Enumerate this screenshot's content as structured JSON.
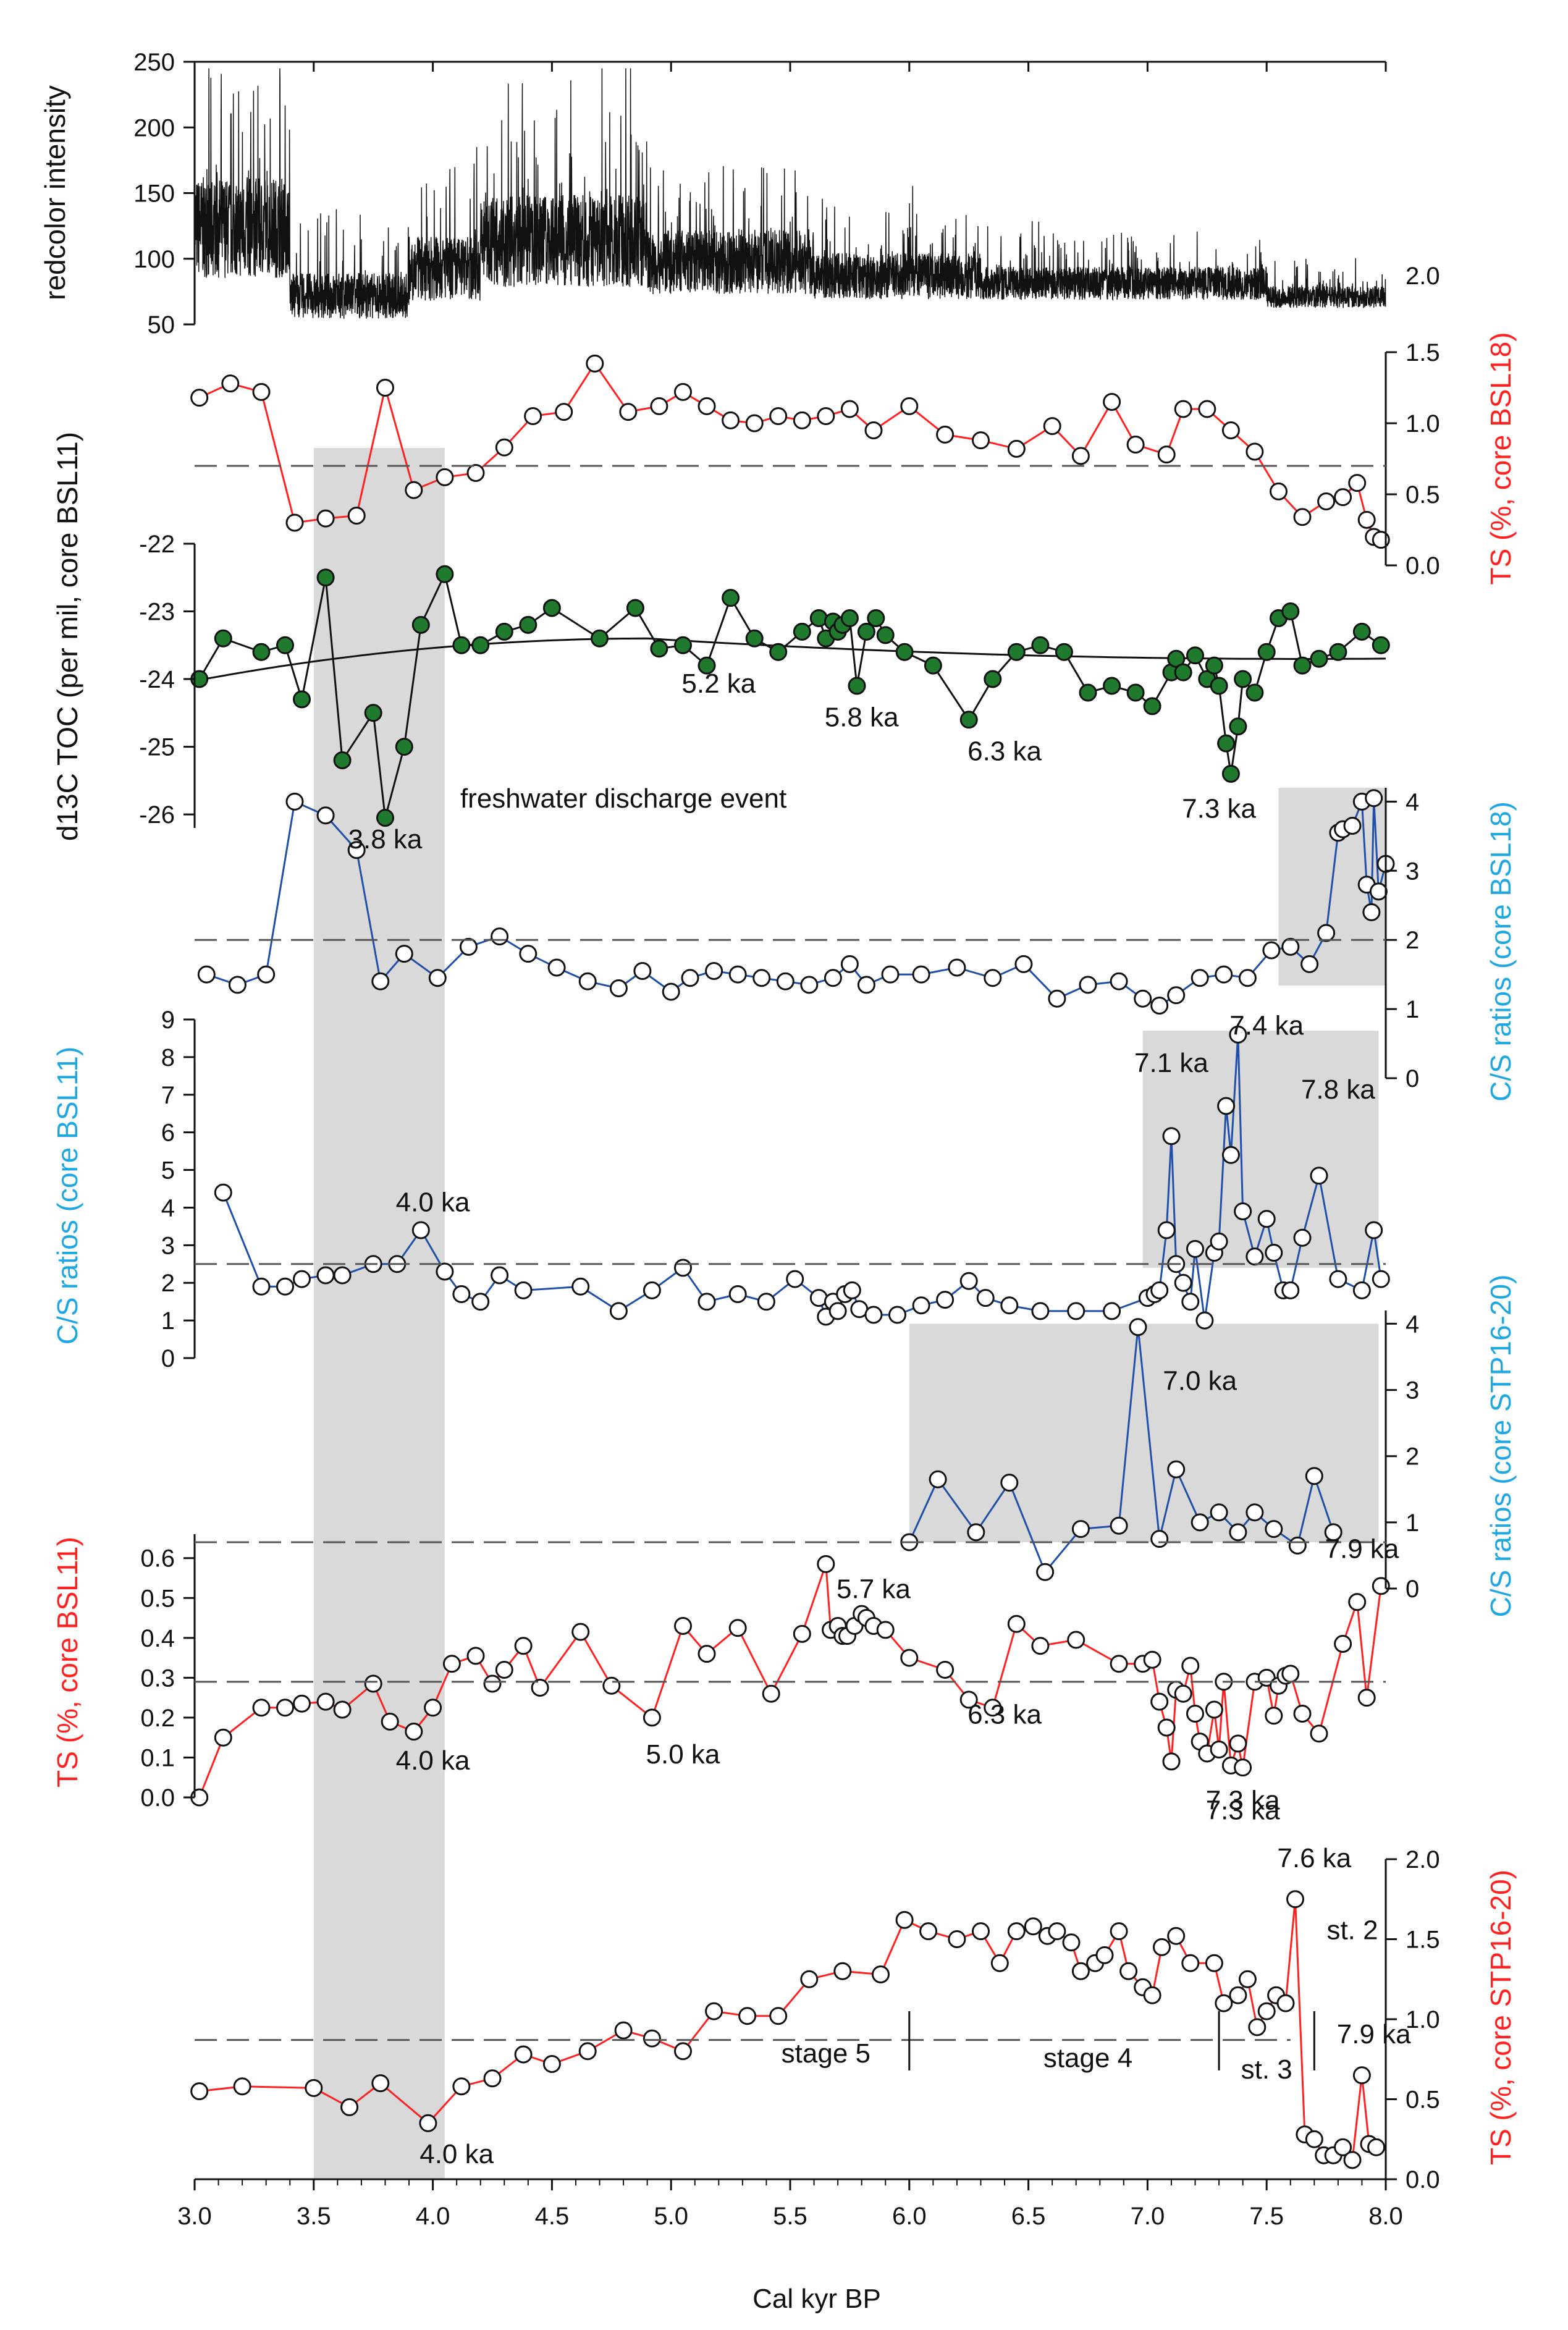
{
  "figure": {
    "x_axis_label": "Cal kyr BP",
    "x_ticks": [
      "3.0",
      "3.5",
      "4.0",
      "4.5",
      "5.0",
      "5.5",
      "6.0",
      "6.5",
      "7.0",
      "7.5",
      "8.0"
    ],
    "colors": {
      "red": "#ff2020",
      "blue": "#1f4fa8",
      "green": "#1f7a2e",
      "cyan": "#1ea7e1",
      "black": "#111111",
      "shade": "#d9d9d9",
      "dash": "#555555"
    }
  },
  "chart_data": [
    {
      "id": "redcolor",
      "type": "line",
      "ylabel": "redcolor intensity",
      "ylim": [
        50,
        250
      ],
      "yticks": [
        "50",
        "100",
        "150",
        "200",
        "250"
      ],
      "note": "high-resolution color scanning record; noisy series approximated",
      "segments": [
        {
          "x0": 3.0,
          "x1": 3.4,
          "base": 120,
          "amp": 55
        },
        {
          "x0": 3.4,
          "x1": 3.9,
          "base": 70,
          "amp": 25
        },
        {
          "x0": 3.9,
          "x1": 4.2,
          "base": 90,
          "amp": 35
        },
        {
          "x0": 4.2,
          "x1": 4.9,
          "base": 110,
          "amp": 50
        },
        {
          "x0": 4.9,
          "x1": 5.6,
          "base": 95,
          "amp": 35
        },
        {
          "x0": 5.6,
          "x1": 6.3,
          "base": 85,
          "amp": 25
        },
        {
          "x0": 6.3,
          "x1": 7.5,
          "base": 80,
          "amp": 18
        },
        {
          "x0": 7.5,
          "x1": 8.0,
          "base": 70,
          "amp": 12
        }
      ]
    },
    {
      "id": "ts_bsl18",
      "type": "line",
      "ylabel": "TS (%, core BSL18)",
      "ylim": [
        0,
        1.5
      ],
      "yticks": [
        "0.0",
        "0.5",
        "1.0",
        "1.5"
      ],
      "threshold": 0.7,
      "x": [
        3.02,
        3.15,
        3.28,
        3.42,
        3.55,
        3.68,
        3.8,
        3.92,
        4.05,
        4.18,
        4.3,
        4.42,
        4.55,
        4.68,
        4.82,
        4.95,
        5.05,
        5.15,
        5.25,
        5.35,
        5.45,
        5.55,
        5.65,
        5.75,
        5.85,
        6.0,
        6.15,
        6.3,
        6.45,
        6.6,
        6.72,
        6.85,
        6.95,
        7.08,
        7.15,
        7.25,
        7.35,
        7.45,
        7.55,
        7.65,
        7.75,
        7.82,
        7.88,
        7.92,
        7.95,
        7.98
      ],
      "values": [
        1.18,
        1.28,
        1.22,
        0.3,
        0.33,
        0.35,
        1.25,
        0.53,
        0.62,
        0.65,
        0.83,
        1.05,
        1.08,
        1.42,
        1.08,
        1.12,
        1.22,
        1.12,
        1.02,
        1.0,
        1.05,
        1.02,
        1.05,
        1.1,
        0.95,
        1.12,
        0.92,
        0.88,
        0.82,
        0.98,
        0.77,
        1.15,
        0.85,
        0.78,
        1.1,
        1.1,
        0.95,
        0.8,
        0.52,
        0.34,
        0.45,
        0.48,
        0.58,
        0.32,
        0.2,
        0.18
      ]
    },
    {
      "id": "d13c_bsl11",
      "type": "line",
      "ylabel": "d13C TOC (per mil, core BSL11)",
      "ylim": [
        -26.2,
        -22
      ],
      "yticks": [
        "-26",
        "-25",
        "-24",
        "-23",
        "-22"
      ],
      "trend": "polynomial",
      "x": [
        3.02,
        3.12,
        3.28,
        3.38,
        3.45,
        3.55,
        3.62,
        3.75,
        3.8,
        3.88,
        3.95,
        4.05,
        4.12,
        4.2,
        4.3,
        4.4,
        4.5,
        4.7,
        4.85,
        4.95,
        5.05,
        5.15,
        5.25,
        5.35,
        5.45,
        5.55,
        5.62,
        5.65,
        5.68,
        5.7,
        5.72,
        5.75,
        5.78,
        5.82,
        5.86,
        5.9,
        5.98,
        6.1,
        6.25,
        6.35,
        6.45,
        6.55,
        6.65,
        6.75,
        6.85,
        6.95,
        7.02,
        7.1,
        7.12,
        7.15,
        7.2,
        7.25,
        7.28,
        7.3,
        7.33,
        7.35,
        7.38,
        7.4,
        7.45,
        7.5,
        7.55,
        7.6,
        7.65,
        7.72,
        7.8,
        7.9,
        7.98
      ],
      "values": [
        -24.0,
        -23.4,
        -23.6,
        -23.5,
        -24.3,
        -22.5,
        -25.2,
        -24.5,
        -26.05,
        -25.0,
        -23.2,
        -22.45,
        -23.5,
        -23.5,
        -23.3,
        -23.2,
        -22.95,
        -23.4,
        -22.95,
        -23.55,
        -23.5,
        -23.8,
        -22.8,
        -23.4,
        -23.6,
        -23.3,
        -23.1,
        -23.4,
        -23.15,
        -23.3,
        -23.2,
        -23.1,
        -24.1,
        -23.3,
        -23.1,
        -23.35,
        -23.6,
        -23.8,
        -24.6,
        -24.0,
        -23.6,
        -23.5,
        -23.6,
        -24.2,
        -24.1,
        -24.2,
        -24.4,
        -23.9,
        -23.7,
        -23.9,
        -23.65,
        -24.0,
        -23.8,
        -24.1,
        -24.95,
        -25.4,
        -24.7,
        -24.0,
        -24.2,
        -23.6,
        -23.1,
        -23.0,
        -23.8,
        -23.7,
        -23.6,
        -23.3,
        -23.5
      ],
      "labels": [
        {
          "text": "3.8 ka",
          "x": 3.8,
          "y": -26.5
        },
        {
          "text": "5.2 ka",
          "x": 5.2,
          "y": -24.2
        },
        {
          "text": "5.8 ka",
          "x": 5.8,
          "y": -24.7
        },
        {
          "text": "6.3 ka",
          "x": 6.4,
          "y": -25.2
        },
        {
          "text": "7.3 ka",
          "x": 7.3,
          "y": -26.05
        },
        {
          "text": "freshwater discharge event",
          "x": 4.8,
          "y": -25.9
        }
      ]
    },
    {
      "id": "cs_bsl18",
      "type": "line",
      "ylabel": "C/S ratios (core BSL18)",
      "ylim": [
        0,
        4.2
      ],
      "yticks": [
        "0",
        "1",
        "2",
        "3",
        "4"
      ],
      "threshold": 2.0,
      "x": [
        3.05,
        3.18,
        3.3,
        3.42,
        3.55,
        3.68,
        3.78,
        3.88,
        4.02,
        4.15,
        4.28,
        4.4,
        4.52,
        4.65,
        4.78,
        4.88,
        5.0,
        5.08,
        5.18,
        5.28,
        5.38,
        5.48,
        5.58,
        5.68,
        5.75,
        5.82,
        5.92,
        6.05,
        6.2,
        6.35,
        6.48,
        6.62,
        6.75,
        6.88,
        6.98,
        7.05,
        7.12,
        7.22,
        7.32,
        7.42,
        7.52,
        7.6,
        7.68,
        7.75,
        7.8,
        7.82,
        7.86,
        7.9,
        7.92,
        7.94,
        7.95,
        7.97,
        8.0
      ],
      "values": [
        1.5,
        1.35,
        1.5,
        4.0,
        3.8,
        3.3,
        1.4,
        1.8,
        1.45,
        1.9,
        2.05,
        1.8,
        1.6,
        1.4,
        1.3,
        1.55,
        1.25,
        1.45,
        1.55,
        1.5,
        1.45,
        1.4,
        1.35,
        1.45,
        1.65,
        1.35,
        1.5,
        1.5,
        1.6,
        1.45,
        1.65,
        1.15,
        1.35,
        1.4,
        1.15,
        1.05,
        1.2,
        1.45,
        1.5,
        1.45,
        1.85,
        1.9,
        1.65,
        2.1,
        3.55,
        3.6,
        3.65,
        4.0,
        2.8,
        2.4,
        4.05,
        2.7,
        3.1
      ]
    },
    {
      "id": "cs_bsl11",
      "type": "line",
      "ylabel": "C/S ratios (core BSL11)",
      "ylim": [
        0,
        9
      ],
      "yticks": [
        "0",
        "1",
        "2",
        "3",
        "4",
        "5",
        "6",
        "7",
        "8",
        "9"
      ],
      "threshold": 2.5,
      "x": [
        3.12,
        3.28,
        3.38,
        3.45,
        3.55,
        3.62,
        3.75,
        3.85,
        3.95,
        4.05,
        4.12,
        4.2,
        4.28,
        4.38,
        4.62,
        4.78,
        4.92,
        5.05,
        5.15,
        5.28,
        5.4,
        5.52,
        5.62,
        5.65,
        5.68,
        5.7,
        5.73,
        5.76,
        5.79,
        5.85,
        5.95,
        6.05,
        6.15,
        6.25,
        6.32,
        6.42,
        6.55,
        6.7,
        6.85,
        7.0,
        7.03,
        7.05,
        7.08,
        7.1,
        7.12,
        7.15,
        7.18,
        7.2,
        7.24,
        7.28,
        7.3,
        7.33,
        7.35,
        7.38,
        7.4,
        7.45,
        7.5,
        7.53,
        7.57,
        7.6,
        7.65,
        7.72,
        7.8,
        7.9,
        7.95,
        7.98
      ],
      "values": [
        4.4,
        1.9,
        1.9,
        2.1,
        2.2,
        2.2,
        2.5,
        2.5,
        3.4,
        2.3,
        1.7,
        1.5,
        2.2,
        1.8,
        1.9,
        1.25,
        1.8,
        2.4,
        1.5,
        1.7,
        1.5,
        2.1,
        1.6,
        1.1,
        1.5,
        1.25,
        1.7,
        1.8,
        1.3,
        1.15,
        1.15,
        1.4,
        1.55,
        2.05,
        1.6,
        1.4,
        1.25,
        1.25,
        1.25,
        1.6,
        1.7,
        1.8,
        3.4,
        5.9,
        2.5,
        2.0,
        1.5,
        2.9,
        1.0,
        2.8,
        3.1,
        6.7,
        5.4,
        8.6,
        3.9,
        2.7,
        3.7,
        2.8,
        1.8,
        1.8,
        3.2,
        4.85,
        2.1,
        1.8,
        3.4,
        2.1
      ],
      "labels": [
        {
          "text": "4.0 ka",
          "x": 4.0,
          "y": 3.9
        },
        {
          "text": "7.1 ka",
          "x": 7.1,
          "y": 7.6
        },
        {
          "text": "7.4 ka",
          "x": 7.5,
          "y": 8.6
        },
        {
          "text": "7.8 ka",
          "x": 7.8,
          "y": 6.9
        }
      ]
    },
    {
      "id": "cs_stp",
      "type": "line",
      "ylabel": "C/S ratios (core STP16-20)",
      "ylim": [
        0,
        4.2
      ],
      "yticks": [
        "0",
        "1",
        "2",
        "3",
        "4"
      ],
      "threshold": 0.7,
      "x": [
        6.0,
        6.12,
        6.28,
        6.42,
        6.57,
        6.72,
        6.88,
        6.96,
        7.05,
        7.12,
        7.22,
        7.3,
        7.38,
        7.45,
        7.53,
        7.63,
        7.7,
        7.78
      ],
      "values": [
        0.7,
        1.65,
        0.85,
        1.6,
        0.25,
        0.9,
        0.95,
        3.95,
        0.75,
        1.8,
        1.0,
        1.15,
        0.85,
        1.15,
        0.9,
        0.65,
        1.7,
        0.85
      ],
      "labels": [
        {
          "text": "7.0 ka",
          "x": 7.22,
          "y": 3.0
        }
      ]
    },
    {
      "id": "ts_bsl11",
      "type": "line",
      "ylabel": "TS (%, core BSL11)",
      "ylim": [
        0,
        0.66
      ],
      "yticks": [
        "0.0",
        "0.1",
        "0.2",
        "0.3",
        "0.4",
        "0.5",
        "0.6"
      ],
      "threshold": 0.29,
      "x": [
        3.02,
        3.12,
        3.28,
        3.38,
        3.45,
        3.55,
        3.62,
        3.75,
        3.82,
        3.92,
        4.0,
        4.08,
        4.18,
        4.25,
        4.3,
        4.38,
        4.45,
        4.62,
        4.75,
        4.92,
        5.05,
        5.15,
        5.28,
        5.42,
        5.55,
        5.65,
        5.67,
        5.7,
        5.72,
        5.74,
        5.77,
        5.8,
        5.82,
        5.85,
        5.9,
        6.0,
        6.15,
        6.25,
        6.35,
        6.45,
        6.55,
        6.7,
        6.88,
        6.98,
        7.02,
        7.05,
        7.08,
        7.1,
        7.12,
        7.15,
        7.18,
        7.2,
        7.22,
        7.25,
        7.28,
        7.3,
        7.32,
        7.35,
        7.38,
        7.4,
        7.45,
        7.5,
        7.53,
        7.55,
        7.58,
        7.6,
        7.65,
        7.72,
        7.82,
        7.88,
        7.92,
        7.98
      ],
      "values": [
        0.0,
        0.15,
        0.225,
        0.225,
        0.235,
        0.24,
        0.22,
        0.285,
        0.19,
        0.165,
        0.225,
        0.335,
        0.355,
        0.285,
        0.32,
        0.38,
        0.275,
        0.415,
        0.28,
        0.2,
        0.43,
        0.36,
        0.425,
        0.26,
        0.41,
        0.585,
        0.42,
        0.43,
        0.405,
        0.405,
        0.43,
        0.46,
        0.45,
        0.43,
        0.42,
        0.35,
        0.32,
        0.245,
        0.225,
        0.435,
        0.38,
        0.395,
        0.335,
        0.335,
        0.345,
        0.24,
        0.175,
        0.09,
        0.27,
        0.26,
        0.33,
        0.21,
        0.14,
        0.11,
        0.22,
        0.12,
        0.29,
        0.08,
        0.135,
        0.075,
        0.29,
        0.3,
        0.205,
        0.28,
        0.305,
        0.31,
        0.21,
        0.16,
        0.385,
        0.49,
        0.25,
        0.53
      ],
      "labels": [
        {
          "text": "4.0 ka",
          "x": 4.0,
          "y": 0.07
        },
        {
          "text": "5.0 ka",
          "x": 5.05,
          "y": 0.085
        },
        {
          "text": "5.7 ka",
          "x": 5.85,
          "y": 0.5
        },
        {
          "text": "6.3 ka",
          "x": 6.4,
          "y": 0.185
        },
        {
          "text": "7.3 ka",
          "x": 7.4,
          "y": -0.03
        },
        {
          "text": "7.9 ka",
          "x": 7.9,
          "y": 0.6
        }
      ]
    },
    {
      "id": "ts_stp",
      "type": "line",
      "ylabel": "TS (%, core STP16-20)",
      "ylim": [
        0,
        2.0
      ],
      "yticks": [
        "0.0",
        "0.5",
        "1.0",
        "1.5",
        "2.0"
      ],
      "threshold": 0.87,
      "x": [
        3.02,
        3.2,
        3.5,
        3.65,
        3.78,
        3.98,
        4.12,
        4.25,
        4.38,
        4.5,
        4.65,
        4.8,
        4.92,
        5.05,
        5.18,
        5.32,
        5.45,
        5.58,
        5.72,
        5.88,
        5.98,
        6.08,
        6.2,
        6.3,
        6.38,
        6.45,
        6.52,
        6.58,
        6.62,
        6.68,
        6.72,
        6.78,
        6.82,
        6.88,
        6.92,
        6.98,
        7.02,
        7.06,
        7.12,
        7.18,
        7.28,
        7.32,
        7.38,
        7.42,
        7.46,
        7.5,
        7.54,
        7.58,
        7.62,
        7.66,
        7.7,
        7.74,
        7.78,
        7.82,
        7.86,
        7.9,
        7.93,
        7.96
      ],
      "values": [
        0.55,
        0.58,
        0.57,
        0.45,
        0.6,
        0.35,
        0.58,
        0.63,
        0.78,
        0.72,
        0.8,
        0.93,
        0.88,
        0.8,
        1.05,
        1.02,
        1.02,
        1.25,
        1.3,
        1.28,
        1.62,
        1.55,
        1.5,
        1.55,
        1.35,
        1.55,
        1.58,
        1.52,
        1.55,
        1.48,
        1.3,
        1.35,
        1.4,
        1.55,
        1.3,
        1.2,
        1.15,
        1.45,
        1.52,
        1.35,
        1.35,
        1.1,
        1.15,
        1.25,
        0.95,
        1.05,
        1.15,
        1.1,
        1.75,
        0.28,
        0.25,
        0.15,
        0.15,
        0.2,
        0.12,
        0.65,
        0.22,
        0.2
      ],
      "labels": [
        {
          "text": "4.0 ka",
          "x": 4.1,
          "y": 0.1
        },
        {
          "text": "7.3 ka",
          "x": 7.4,
          "y": 2.25
        },
        {
          "text": "7.6 ka",
          "x": 7.7,
          "y": 1.95
        },
        {
          "text": "st. 2",
          "x": 7.86,
          "y": 1.5
        },
        {
          "text": "7.9 ka",
          "x": 7.95,
          "y": 0.85
        },
        {
          "text": "stage 5",
          "x": 5.65,
          "y": 0.73
        },
        {
          "text": "stage 4",
          "x": 6.75,
          "y": 0.7
        },
        {
          "text": "st. 3",
          "x": 7.5,
          "y": 0.63
        }
      ],
      "stage_markers": [
        6.0,
        7.3,
        7.7
      ]
    }
  ]
}
